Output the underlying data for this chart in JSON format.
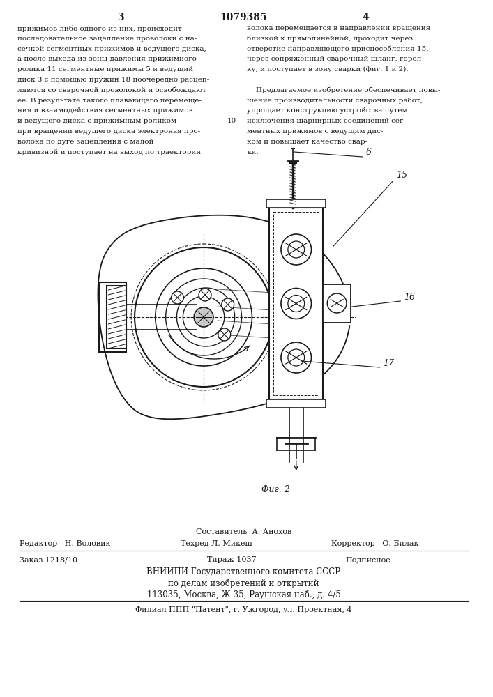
{
  "page_color": "#ffffff",
  "title_number": "1079385",
  "page_numbers": [
    "3",
    "4"
  ],
  "col1_text": "прижимов либо одного из них, происходит\nпоследовательное зацепление проволоки с на-\nсечкой сегментных прижимов и ведущего диска,\nа после выхода из зоны давления прижимного\nролика 11 сегментные прижимы 5 и ведущий\nдиск 3 с помощью пружин 18 поочередно расцеп-\nляются со сварочной проволокой и освобождают\nее. В результате такого плавающего перемеще-\nния и взаимодействия сегментных прижимов\nи ведущего диска с прижимным роликом\nпри вращении ведущего диска электроная про-\nволока по дуге зацепления с малой\nкривизной и поступает на выход по траектории",
  "line_number": "10",
  "col2_text": "волока перемещается в направлении вращения\nблизкой к прямолинейной, проходит через\nотверстие направляющего приспособления 15,\nчерез сопряженный сварочный шланг, горел-\nку, и поступает в зону сварки (фиг. 1 и 2).",
  "col2_text2": "    Предлагаемое изобретение обеспечивает повы-\nшение производительности сварочных работ,\nупрощает конструкцию устройства путем\nисключения шарнирных соединений сег-\nментных прижимов с ведущим дис-\nком и повышает качество свар-\nки.",
  "fig_label": "Фиг. 2",
  "editor_line": "Составитель  А. Анохов",
  "editor_label": "Редактор   Н. Воловик",
  "techred_label": "Техред Л. Микеш",
  "corrector_label": "Корректор   О. Билак",
  "order_label": "Заказ 1218/10",
  "tirazh_label": "Тираж 1037",
  "podpisnoe_label": "Подписное",
  "vniip_line1": "ВНИИПИ Государственного комитета СССР",
  "vniip_line2": "по делам изобретений и открытий",
  "vniip_line3": "113035, Москва, Ж-35, Раушская наб., д. 4/5",
  "filial_line": "Филиал ППП \"Патент\", г. Ужгород, ул. Проектная, 4",
  "text_color": "#1a1a1a",
  "line_color": "#222222",
  "draw_color": "#1a1a1a"
}
